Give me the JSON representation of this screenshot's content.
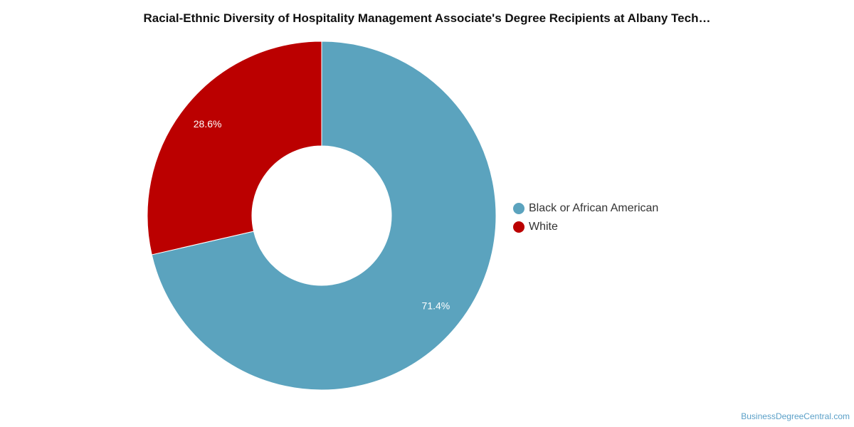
{
  "chart_data": {
    "type": "pie",
    "title": "Racial-Ethnic Diversity of Hospitality Management Associate's Degree Recipients at Albany Tech…",
    "donut": true,
    "series": [
      {
        "name": "Black or African American",
        "value": 71.4,
        "label": "71.4%",
        "color": "#5ba3be"
      },
      {
        "name": "White",
        "value": 28.6,
        "label": "28.6%",
        "color": "#bb0000"
      }
    ],
    "legend_position": "right"
  },
  "watermark": "BusinessDegreeCentral.com"
}
